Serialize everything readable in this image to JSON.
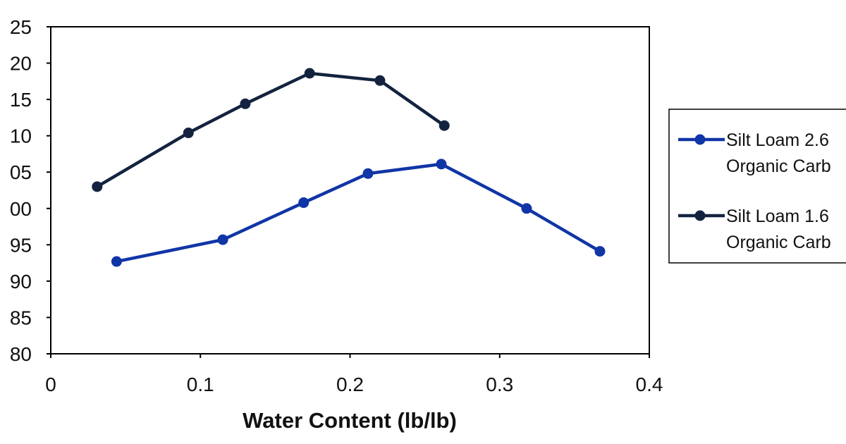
{
  "chart_data": {
    "type": "line",
    "title": "",
    "xlabel": "Water Content (lb/lb)",
    "ylabel": "",
    "xlim": [
      0,
      0.4
    ],
    "ylim": [
      80,
      125
    ],
    "x_ticks": [
      "0",
      "0.1",
      "0.2",
      "0.3",
      "0.4"
    ],
    "y_ticks": [
      "80",
      "85",
      "90",
      "95",
      "00",
      "05",
      "10",
      "15",
      "20",
      "25"
    ],
    "grid": false,
    "legend_position": "right",
    "series": [
      {
        "name": "Silt Loam 2.6 Organic Carb",
        "legend_lines": [
          "Silt Loam 2.6",
          "Organic Carb"
        ],
        "color": "#1035a6",
        "x": [
          0.044,
          0.115,
          0.169,
          0.212,
          0.261,
          0.318,
          0.367
        ],
        "y": [
          92.7,
          95.7,
          100.8,
          104.8,
          106.1,
          100.0,
          94.1
        ]
      },
      {
        "name": "Silt Loam 1.6 Organic Carb",
        "legend_lines": [
          "Silt Loam 1.6",
          "Organic Carb"
        ],
        "color": "#13233f",
        "x": [
          0.031,
          0.092,
          0.13,
          0.173,
          0.22,
          0.263
        ],
        "y": [
          103.0,
          110.4,
          114.4,
          118.6,
          117.6,
          111.4
        ]
      }
    ]
  }
}
